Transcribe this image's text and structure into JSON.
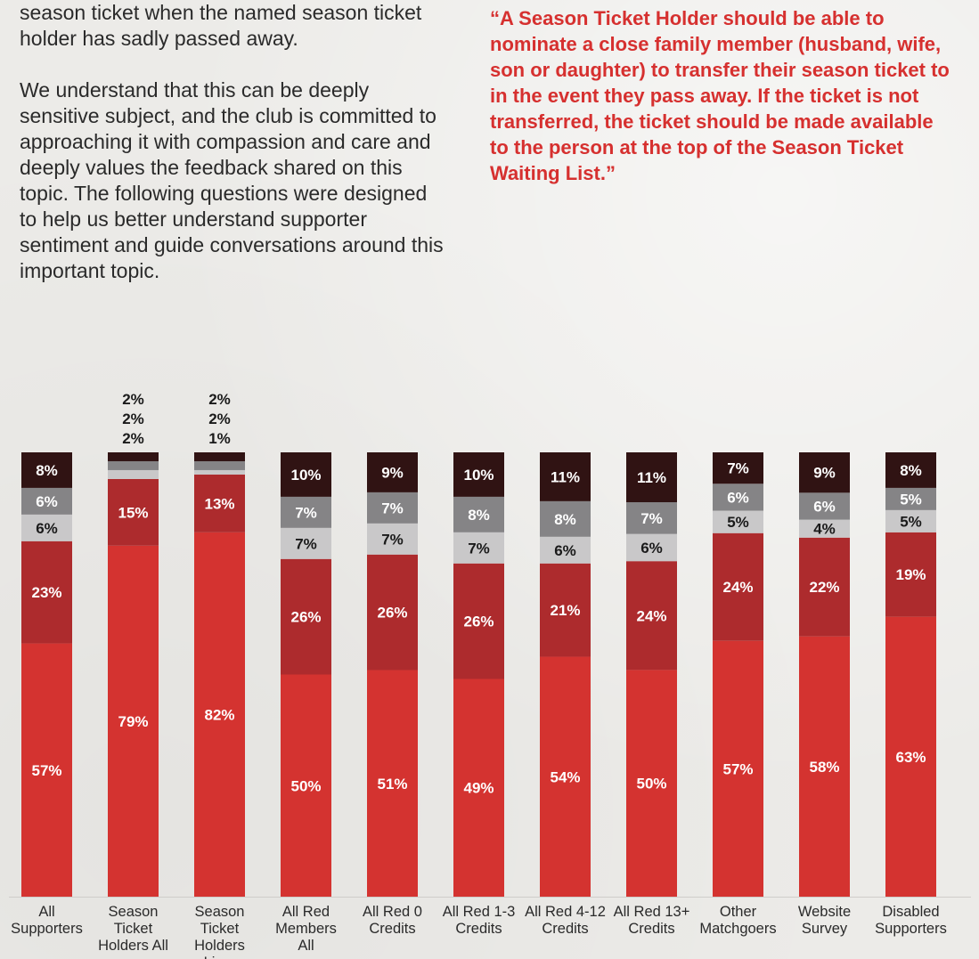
{
  "intro": {
    "paragraph1": "season ticket when the named season ticket holder has sadly passed away.",
    "paragraph2": "We understand that this can be deeply sensitive subject, and the club is committed to approaching it with compassion and care and deeply values the feedback shared on this topic. The following questions were designed to help us better understand supporter sentiment and guide conversations around this important topic."
  },
  "quote": "“A Season Ticket Holder should be able to nominate a close family member (husband, wife, son or daughter) to transfer their season ticket to in the event they pass away. If the ticket is not transferred, the ticket should be made available to the person at the top of the Season Ticket Waiting List.”",
  "colors": {
    "strongly_agree": "#d43330",
    "agree": "#ad2b2d",
    "neither": "#c9c8c9",
    "disagree": "#858486",
    "strongly_disagree": "#301313",
    "label_light": "#ffffff",
    "label_dark": "#1a1a1a"
  },
  "chart_data": {
    "type": "bar",
    "stacked": true,
    "normalized": true,
    "categories": [
      [
        "All",
        "Supporters"
      ],
      [
        "Season",
        "Ticket",
        "Holders All"
      ],
      [
        "Season",
        "Ticket",
        "Holders",
        "Lin..."
      ],
      [
        "All Red",
        "Members",
        "All"
      ],
      [
        "All Red 0",
        "Credits"
      ],
      [
        "All Red 1-3",
        "Credits"
      ],
      [
        "All Red 4-12",
        "Credits"
      ],
      [
        "All Red 13+",
        "Credits"
      ],
      [
        "Other",
        "Matchgoers"
      ],
      [
        "Website",
        "Survey"
      ],
      [
        "Disabled",
        "Supporters"
      ]
    ],
    "series": [
      {
        "key": "strongly_agree",
        "values": [
          57,
          79,
          82,
          50,
          51,
          49,
          54,
          50,
          57,
          58,
          63
        ]
      },
      {
        "key": "agree",
        "values": [
          23,
          15,
          13,
          26,
          26,
          26,
          21,
          24,
          24,
          22,
          19
        ]
      },
      {
        "key": "neither",
        "values": [
          6,
          2,
          1,
          7,
          7,
          7,
          6,
          6,
          5,
          4,
          5
        ]
      },
      {
        "key": "disagree",
        "values": [
          6,
          2,
          2,
          7,
          7,
          8,
          8,
          7,
          6,
          6,
          5
        ]
      },
      {
        "key": "strongly_disagree",
        "values": [
          8,
          2,
          2,
          10,
          9,
          10,
          11,
          11,
          7,
          9,
          8
        ]
      }
    ],
    "value_suffix": "%"
  }
}
